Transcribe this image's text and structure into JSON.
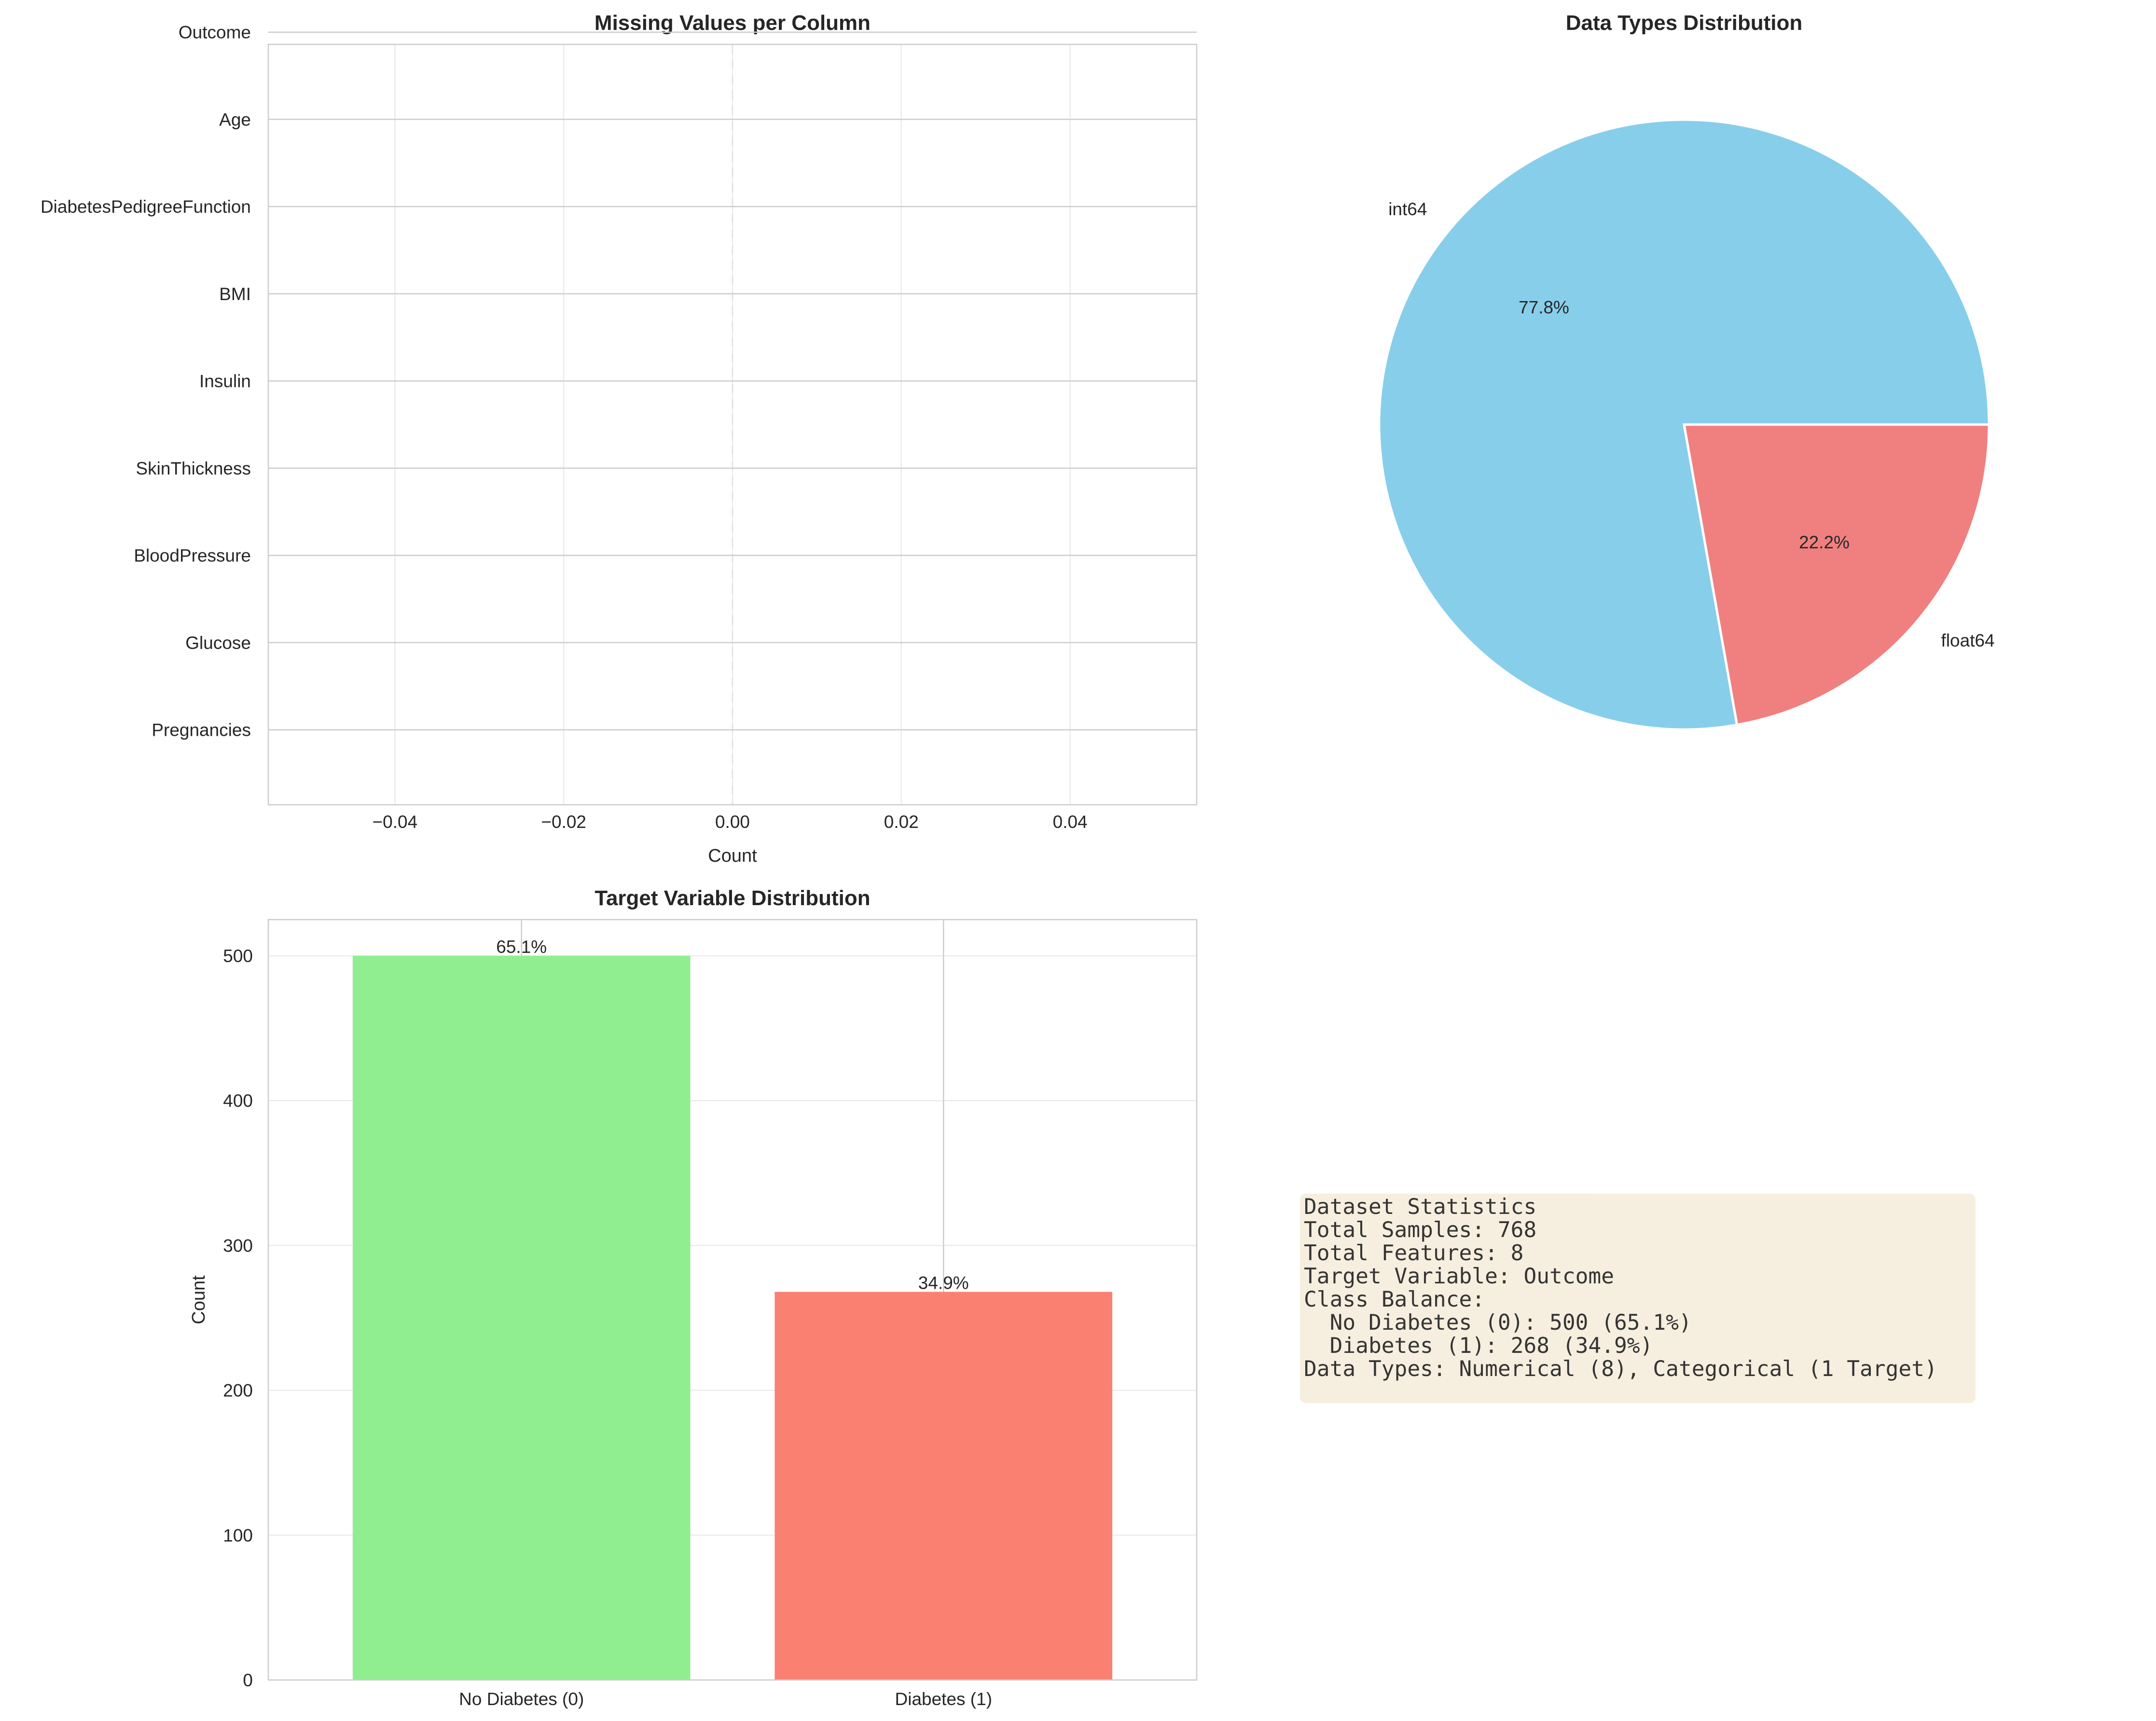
{
  "chart_data": [
    {
      "type": "bar",
      "orientation": "horizontal",
      "title": "Missing Values per Column",
      "xlabel": "Count",
      "ylabel": "",
      "categories": [
        "Pregnancies",
        "Glucose",
        "BloodPressure",
        "SkinThickness",
        "Insulin",
        "BMI",
        "DiabetesPedigreeFunction",
        "Age",
        "Outcome"
      ],
      "values": [
        0,
        0,
        0,
        0,
        0,
        0,
        0,
        0,
        0
      ],
      "xlim": [
        -0.055,
        0.055
      ],
      "xticks": [
        "−0.04",
        "−0.02",
        "0.00",
        "0.02",
        "0.04"
      ],
      "xtick_values": [
        -0.04,
        -0.02,
        0.0,
        0.02,
        0.04
      ],
      "grid": true,
      "color": "#ff6b6b"
    },
    {
      "type": "pie",
      "title": "Data Types Distribution",
      "labels": [
        "int64",
        "float64"
      ],
      "values": [
        7,
        2
      ],
      "percent_labels": [
        "77.8%",
        "22.2%"
      ],
      "colors": [
        "#87ceeb",
        "#f08080"
      ]
    },
    {
      "type": "bar",
      "title": "Target Variable Distribution",
      "xlabel": "",
      "ylabel": "Count",
      "categories": [
        "No Diabetes (0)",
        "Diabetes (1)"
      ],
      "values": [
        500,
        268
      ],
      "data_labels": [
        "65.1%",
        "34.9%"
      ],
      "ylim": [
        0,
        525
      ],
      "yticks": [
        "0",
        "100",
        "200",
        "300",
        "400",
        "500"
      ],
      "ytick_values": [
        0,
        100,
        200,
        300,
        400,
        500
      ],
      "colors": [
        "#90ee90",
        "#fa8072"
      ],
      "grid": true
    }
  ],
  "stats_box": {
    "lines": [
      "Dataset Statistics",
      "Total Samples: 768",
      "Total Features: 8",
      "Target Variable: Outcome",
      "Class Balance:",
      "  No Diabetes (0): 500 (65.1%)",
      "  Diabetes (1): 268 (34.9%)",
      "Data Types: Numerical (8), Categorical (1 Target)"
    ]
  }
}
